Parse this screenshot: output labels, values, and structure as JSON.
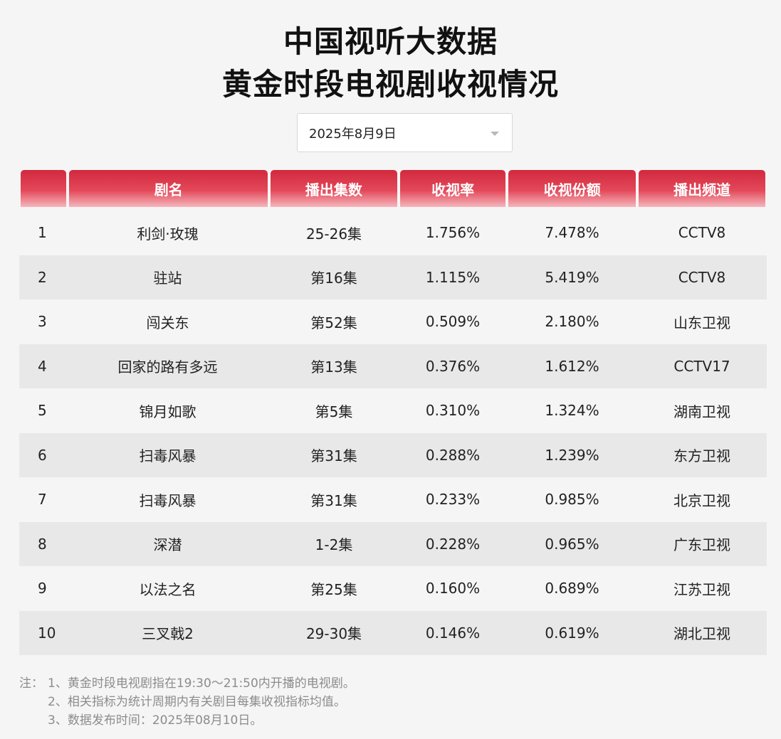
{
  "title_line1": "中国视听大数据",
  "title_line2": "黄金时段电视剧收视情况",
  "date_selector": {
    "value": "2025年8月9日",
    "icon": "chevron-down-icon"
  },
  "table": {
    "headers": [
      "",
      "剧名",
      "播出集数",
      "收视率",
      "收视份额",
      "播出频道"
    ],
    "rows": [
      {
        "rank": "1",
        "name": "利剑·玫瑰",
        "episodes": "25-26集",
        "rating": "1.756%",
        "share": "7.478%",
        "channel": "CCTV8"
      },
      {
        "rank": "2",
        "name": "驻站",
        "episodes": "第16集",
        "rating": "1.115%",
        "share": "5.419%",
        "channel": "CCTV8"
      },
      {
        "rank": "3",
        "name": "闯关东",
        "episodes": "第52集",
        "rating": "0.509%",
        "share": "2.180%",
        "channel": "山东卫视"
      },
      {
        "rank": "4",
        "name": "回家的路有多远",
        "episodes": "第13集",
        "rating": "0.376%",
        "share": "1.612%",
        "channel": "CCTV17"
      },
      {
        "rank": "5",
        "name": "锦月如歌",
        "episodes": "第5集",
        "rating": "0.310%",
        "share": "1.324%",
        "channel": "湖南卫视"
      },
      {
        "rank": "6",
        "name": "扫毒风暴",
        "episodes": "第31集",
        "rating": "0.288%",
        "share": "1.239%",
        "channel": "东方卫视"
      },
      {
        "rank": "7",
        "name": "扫毒风暴",
        "episodes": "第31集",
        "rating": "0.233%",
        "share": "0.985%",
        "channel": "北京卫视"
      },
      {
        "rank": "8",
        "name": "深潜",
        "episodes": "1-2集",
        "rating": "0.228%",
        "share": "0.965%",
        "channel": "广东卫视"
      },
      {
        "rank": "9",
        "name": "以法之名",
        "episodes": "第25集",
        "rating": "0.160%",
        "share": "0.689%",
        "channel": "江苏卫视"
      },
      {
        "rank": "10",
        "name": "三叉戟2",
        "episodes": "29-30集",
        "rating": "0.146%",
        "share": "0.619%",
        "channel": "湖北卫视"
      }
    ]
  },
  "notes": {
    "prefix": "注：",
    "lines": [
      "1、黄金时段电视剧指在19:30～21:50内开播的电视剧。",
      "2、相关指标为统计周期内有关剧目每集收视指标均值。",
      "3、数据发布时间：2025年08月10日。"
    ]
  },
  "colors": {
    "header_red": "#d2293f",
    "header_fade": "#f6b6bd",
    "stripe": "#e8e8e8",
    "page_bg": "#f5f5f5"
  }
}
